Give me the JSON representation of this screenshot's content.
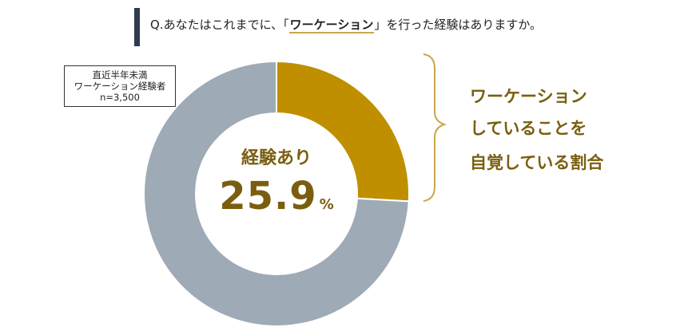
{
  "question": {
    "prefix": "Q.あなたはこれまでに、「",
    "keyword": "ワーケーション",
    "suffix": "」を行った経験はありますか。"
  },
  "sample": {
    "line1": "直近半年未満",
    "line2": "ワーケーション経験者",
    "line3": "n=3,500"
  },
  "center": {
    "title": "経験あり",
    "value": "25.9",
    "unit": "%"
  },
  "annotation": {
    "line1": "ワーケーション",
    "line2": "していることを",
    "line3": "自覚している割合"
  },
  "chart_data": {
    "type": "pie",
    "donut": true,
    "slices": [
      {
        "label": "経験あり",
        "value": 25.9,
        "color": "#bf8f00"
      },
      {
        "label": "",
        "value": 74.1,
        "color": "#9eaab6"
      }
    ]
  }
}
